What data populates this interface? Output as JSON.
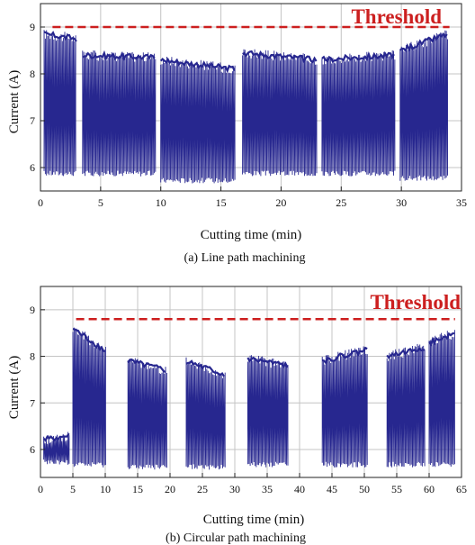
{
  "charts": [
    {
      "caption": "(a) Line path machining"
    },
    {
      "caption": "(b) Circular path machining"
    }
  ],
  "chart_data": [
    {
      "type": "line",
      "title": "",
      "xlabel": "Cutting time (min)",
      "ylabel": "Current (A)",
      "xlim": [
        0,
        35
      ],
      "ylim": [
        5.5,
        9.5
      ],
      "xticks": [
        0,
        5,
        10,
        15,
        20,
        25,
        30,
        35
      ],
      "yticks": [
        6,
        7,
        8,
        9
      ],
      "threshold": {
        "label": "Threshold",
        "value": 9.0,
        "x_range": [
          1,
          34
        ]
      },
      "segments": [
        {
          "x": [
            0.3,
            3.0
          ],
          "base": 5.85,
          "peak_start": 8.85,
          "peak_end": 8.75
        },
        {
          "x": [
            3.5,
            9.6
          ],
          "base": 5.85,
          "peak_start": 8.4,
          "peak_end": 8.35
        },
        {
          "x": [
            10.0,
            16.2
          ],
          "base": 5.7,
          "peak_start": 8.3,
          "peak_end": 8.1
        },
        {
          "x": [
            16.8,
            23.0
          ],
          "base": 5.85,
          "peak_start": 8.45,
          "peak_end": 8.3
        },
        {
          "x": [
            23.4,
            29.5
          ],
          "base": 5.85,
          "peak_start": 8.3,
          "peak_end": 8.4
        },
        {
          "x": [
            29.9,
            33.9
          ],
          "base": 5.75,
          "peak_start": 8.5,
          "peak_end": 8.85
        }
      ],
      "grid": true,
      "line_color": "#27278f",
      "threshold_color": "#cc1f1f"
    },
    {
      "type": "line",
      "title": "",
      "xlabel": "Cutting time (min)",
      "ylabel": "Current (A)",
      "xlim": [
        0,
        65
      ],
      "ylim": [
        5.4,
        9.5
      ],
      "xticks": [
        0,
        5,
        10,
        15,
        20,
        25,
        30,
        35,
        40,
        45,
        50,
        55,
        60,
        65
      ],
      "yticks": [
        6,
        7,
        8,
        9
      ],
      "threshold": {
        "label": "Threshold",
        "value": 8.8,
        "x_range": [
          5.5,
          64
        ]
      },
      "segments": [
        {
          "x": [
            0.5,
            4.5
          ],
          "base": 5.7,
          "peak_start": 6.2,
          "peak_end": 6.3
        },
        {
          "x": [
            5.0,
            10.2
          ],
          "base": 5.65,
          "peak_start": 8.6,
          "peak_end": 8.1
        },
        {
          "x": [
            13.5,
            19.5
          ],
          "base": 5.6,
          "peak_start": 7.9,
          "peak_end": 7.7
        },
        {
          "x": [
            22.5,
            28.5
          ],
          "base": 5.6,
          "peak_start": 7.9,
          "peak_end": 7.6
        },
        {
          "x": [
            32.0,
            38.2
          ],
          "base": 5.65,
          "peak_start": 7.95,
          "peak_end": 7.8
        },
        {
          "x": [
            43.5,
            50.5
          ],
          "base": 5.65,
          "peak_start": 7.9,
          "peak_end": 8.15
        },
        {
          "x": [
            53.5,
            59.5
          ],
          "base": 5.65,
          "peak_start": 8.0,
          "peak_end": 8.2
        },
        {
          "x": [
            60.0,
            64.0
          ],
          "base": 5.65,
          "peak_start": 8.3,
          "peak_end": 8.5
        }
      ],
      "grid": true,
      "line_color": "#27278f",
      "threshold_color": "#cc1f1f"
    }
  ]
}
